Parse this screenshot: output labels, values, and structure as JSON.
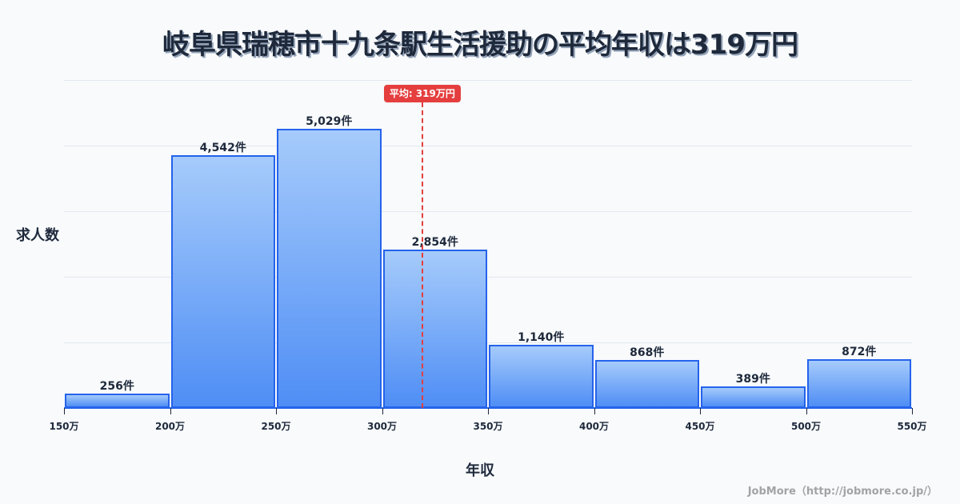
{
  "title": "岐阜県瑞穂市十九条駅生活援助の平均年収は319万円",
  "ylabel": "求人数",
  "xlabel": "年収",
  "credit": "JobMore（http://jobmore.co.jp/）",
  "average_badge": "平均: 319万円",
  "colors": {
    "bar_border": "#2563eb",
    "bar_top": "#a6cbfb",
    "bar_bottom": "#4f8ef5",
    "average_line": "#e53e3e",
    "text": "#1e293b",
    "background": "#f8fafc"
  },
  "chart_data": {
    "type": "bar",
    "title": "岐阜県瑞穂市十九条駅生活援助の平均年収は319万円",
    "xlabel": "年収",
    "ylabel": "求人数",
    "categories": [
      "150万-200万",
      "200万-250万",
      "250万-300万",
      "300万-350万",
      "350万-400万",
      "400万-450万",
      "450万-500万",
      "500万-550万"
    ],
    "bin_edges": [
      150,
      200,
      250,
      300,
      350,
      400,
      450,
      500,
      550
    ],
    "values": [
      256,
      4542,
      5029,
      2854,
      1140,
      868,
      389,
      872
    ],
    "value_labels": [
      "256件",
      "4,542件",
      "5,029件",
      "2,854件",
      "1,140件",
      "868件",
      "389件",
      "872件"
    ],
    "x_tick_labels": [
      "150万",
      "200万",
      "250万",
      "300万",
      "350万",
      "400万",
      "450万",
      "500万",
      "550万"
    ],
    "xlim": [
      150,
      550
    ],
    "ylim": [
      0,
      5900
    ],
    "grid": true,
    "average": 319,
    "average_label": "平均: 319万円"
  }
}
